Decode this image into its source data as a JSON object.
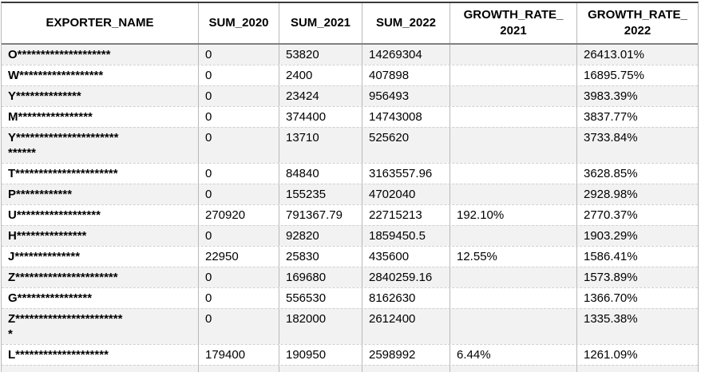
{
  "colors": {
    "row_stripe": "#f2f2f2",
    "grid_vertical": "#b9b9b9",
    "grid_horizontal_dashed": "#d0d0d0",
    "header_separator": "#808080",
    "table_top_border": "#3a3a3a",
    "text": "#000000"
  },
  "table": {
    "columns": [
      {
        "key": "exporter",
        "label": "EXPORTER_NAME"
      },
      {
        "key": "sum_2020",
        "label": "SUM_2020"
      },
      {
        "key": "sum_2021",
        "label": "SUM_2021"
      },
      {
        "key": "sum_2022",
        "label": "SUM_2022"
      },
      {
        "key": "growth_2021",
        "label": "GROWTH_RATE_\n2021"
      },
      {
        "key": "growth_2022",
        "label": "GROWTH_RATE_\n2022"
      }
    ],
    "rows": [
      {
        "exporter": "O********************",
        "sum_2020": "0",
        "sum_2021": "53820",
        "sum_2022": "14269304",
        "growth_2021": "",
        "growth_2022": "26413.01%"
      },
      {
        "exporter": "W******************",
        "sum_2020": "0",
        "sum_2021": "2400",
        "sum_2022": "407898",
        "growth_2021": "",
        "growth_2022": "16895.75%"
      },
      {
        "exporter": "Y**************",
        "sum_2020": "0",
        "sum_2021": "23424",
        "sum_2022": "956493",
        "growth_2021": "",
        "growth_2022": "3983.39%"
      },
      {
        "exporter": "M****************",
        "sum_2020": "0",
        "sum_2021": "374400",
        "sum_2022": "14743008",
        "growth_2021": "",
        "growth_2022": "3837.77%"
      },
      {
        "exporter": "Y**********************\n******",
        "sum_2020": "0",
        "sum_2021": "13710",
        "sum_2022": "525620",
        "growth_2021": "",
        "growth_2022": "3733.84%"
      },
      {
        "exporter": "T**********************",
        "sum_2020": "0",
        "sum_2021": "84840",
        "sum_2022": "3163557.96",
        "growth_2021": "",
        "growth_2022": "3628.85%"
      },
      {
        "exporter": "P************",
        "sum_2020": "0",
        "sum_2021": "155235",
        "sum_2022": "4702040",
        "growth_2021": "",
        "growth_2022": "2928.98%"
      },
      {
        "exporter": "U******************",
        "sum_2020": "270920",
        "sum_2021": "791367.79",
        "sum_2022": "22715213",
        "growth_2021": "192.10%",
        "growth_2022": "2770.37%"
      },
      {
        "exporter": "H***************",
        "sum_2020": "0",
        "sum_2021": "92820",
        "sum_2022": "1859450.5",
        "growth_2021": "",
        "growth_2022": "1903.29%"
      },
      {
        "exporter": "J**************",
        "sum_2020": "22950",
        "sum_2021": "25830",
        "sum_2022": "435600",
        "growth_2021": "12.55%",
        "growth_2022": "1586.41%"
      },
      {
        "exporter": "Z**********************",
        "sum_2020": "0",
        "sum_2021": "169680",
        "sum_2022": "2840259.16",
        "growth_2021": "",
        "growth_2022": "1573.89%"
      },
      {
        "exporter": "G****************",
        "sum_2020": "0",
        "sum_2021": "556530",
        "sum_2022": "8162630",
        "growth_2021": "",
        "growth_2022": "1366.70%"
      },
      {
        "exporter": "Z***********************\n*",
        "sum_2020": "0",
        "sum_2021": "182000",
        "sum_2022": "2612400",
        "growth_2021": "",
        "growth_2022": "1335.38%"
      },
      {
        "exporter": "L********************",
        "sum_2020": "179400",
        "sum_2021": "190950",
        "sum_2022": "2598992",
        "growth_2021": "6.44%",
        "growth_2022": "1261.09%"
      }
    ]
  }
}
